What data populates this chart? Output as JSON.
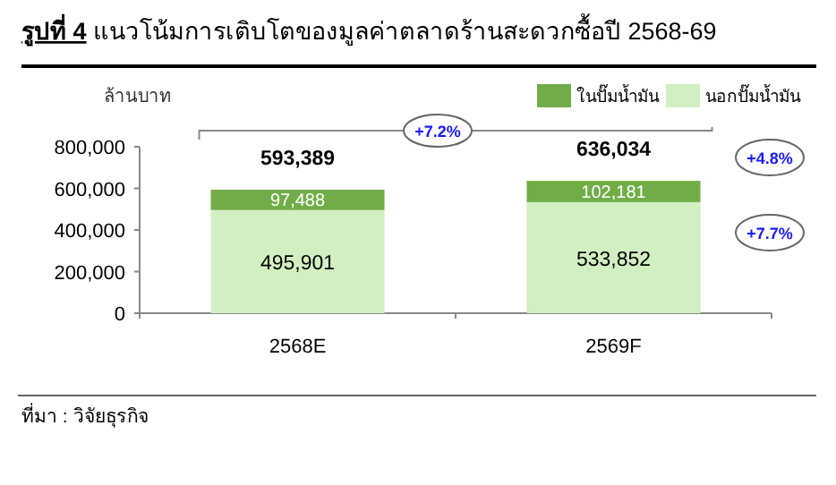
{
  "chart_data": {
    "type": "bar",
    "stacked": true,
    "title": "**รูปที่ 4** แนวโน้มการเติบโตของมูลค่าตลาดร้านสะดวกซื้อปี 2568-69",
    "ylabel": "ล้านบาท",
    "categories": [
      "2568E",
      "2569F"
    ],
    "series": [
      {
        "name": "นอกปั๊มน้ำมัน",
        "color": "#d1efc1",
        "values": [
          495901,
          533852
        ],
        "value_labels": [
          "495,901",
          "533,852"
        ]
      },
      {
        "name": "ในปั๊มน้ำมัน",
        "color": "#70ad47",
        "values": [
          97488,
          102181
        ],
        "value_labels": [
          "97,488",
          "102,181"
        ]
      }
    ],
    "totals": [
      "593,389",
      "636,034"
    ],
    "ylim": [
      0,
      800000
    ],
    "yticks": [
      {
        "value": 0,
        "label": "0"
      },
      {
        "value": 200000,
        "label": "200,000"
      },
      {
        "value": 400000,
        "label": "400,000"
      },
      {
        "value": 600000,
        "label": "600,000"
      },
      {
        "value": 800000,
        "label": "800,000"
      }
    ],
    "legend": "top right",
    "grid": false,
    "annotations": [
      "+7.2%",
      "+4.8%",
      "+7.7%",
      "ที่มา : วิจัยธุรกิจ"
    ]
  }
}
